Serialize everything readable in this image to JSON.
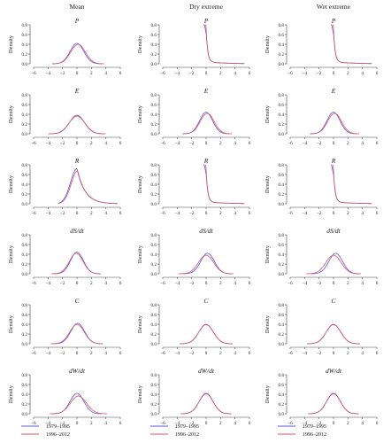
{
  "figure": {
    "column_titles": [
      "Mean",
      "Dry extreme",
      "Wet extreme"
    ],
    "row_labels": [
      [
        "P",
        "P",
        "P"
      ],
      [
        "E",
        "E",
        "E"
      ],
      [
        "R",
        "R",
        "R"
      ],
      [
        "dS/dt",
        "dS/dt",
        "dS/dt"
      ],
      [
        "C",
        "C",
        "C"
      ],
      [
        "dW/dt",
        "dW/dt",
        "dW/dt"
      ]
    ],
    "ylabel": "Density",
    "x_ticks": [
      "−6",
      "−4",
      "−2",
      "0",
      "2",
      "4",
      "6"
    ],
    "y_ticks": [
      "0.0",
      "0.2",
      "0.4",
      "0.6",
      "0.8"
    ],
    "legend": [
      "1979–1995",
      "1996–2012"
    ]
  },
  "colors": {
    "series_1": "#5b5bd6",
    "series_2": "#d9536b",
    "axis": "#444444"
  },
  "chart_data": {
    "type": "line",
    "xlim": [
      -6,
      6
    ],
    "ylim": [
      0,
      0.8
    ],
    "series_names": [
      "1979–1995",
      "1996–2012"
    ],
    "panels": [
      {
        "row": 0,
        "col": 0,
        "label": "P",
        "kind": "normal",
        "s1": {
          "mu": 0.0,
          "sd": 0.95
        },
        "s2": {
          "mu": 0.15,
          "sd": 1.0
        }
      },
      {
        "row": 0,
        "col": 1,
        "label": "P",
        "kind": "spike",
        "s1": {
          "peak": 0.9,
          "x0": -0.35
        },
        "s2": {
          "peak": 0.95,
          "x0": -0.1
        }
      },
      {
        "row": 0,
        "col": 2,
        "label": "P",
        "kind": "spike",
        "s1": {
          "peak": 0.88,
          "x0": -0.35
        },
        "s2": {
          "peak": 0.93,
          "x0": -0.1
        }
      },
      {
        "row": 1,
        "col": 0,
        "label": "E",
        "kind": "normal",
        "s1": {
          "mu": 0.0,
          "sd": 1.05
        },
        "s2": {
          "mu": 0.0,
          "sd": 1.1
        }
      },
      {
        "row": 1,
        "col": 1,
        "label": "E",
        "kind": "normal",
        "s1": {
          "mu": 0.0,
          "sd": 0.9
        },
        "s2": {
          "mu": 0.15,
          "sd": 0.95
        }
      },
      {
        "row": 1,
        "col": 2,
        "label": "E",
        "kind": "normal",
        "s1": {
          "mu": 0.0,
          "sd": 0.9
        },
        "s2": {
          "mu": 0.15,
          "sd": 0.95
        }
      },
      {
        "row": 2,
        "col": 0,
        "label": "R",
        "kind": "skew",
        "s1": {
          "peak": 0.72,
          "mode": 0.0
        },
        "s2": {
          "peak": 0.68,
          "mode": 0.1
        }
      },
      {
        "row": 2,
        "col": 1,
        "label": "R",
        "kind": "spike",
        "s1": {
          "peak": 0.88,
          "x0": -0.35
        },
        "s2": {
          "peak": 0.92,
          "x0": -0.1
        }
      },
      {
        "row": 2,
        "col": 2,
        "label": "R",
        "kind": "spike",
        "s1": {
          "peak": 0.86,
          "x0": -0.35
        },
        "s2": {
          "peak": 0.9,
          "x0": -0.1
        }
      },
      {
        "row": 3,
        "col": 0,
        "label": "dS/dt",
        "kind": "normal",
        "s1": {
          "mu": 0.0,
          "sd": 0.9
        },
        "s2": {
          "mu": -0.1,
          "sd": 0.95
        }
      },
      {
        "row": 3,
        "col": 1,
        "label": "dS/dt",
        "kind": "normal",
        "s1": {
          "mu": 0.2,
          "sd": 0.95
        },
        "s2": {
          "mu": 0.0,
          "sd": 1.05
        }
      },
      {
        "row": 3,
        "col": 2,
        "label": "dS/dt",
        "kind": "normal",
        "s1": {
          "mu": 0.3,
          "sd": 0.95
        },
        "s2": {
          "mu": 0.0,
          "sd": 1.05
        }
      },
      {
        "row": 4,
        "col": 0,
        "label": "C",
        "kind": "normal",
        "s1": {
          "mu": 0.1,
          "sd": 0.95
        },
        "s2": {
          "mu": 0.0,
          "sd": 1.0
        }
      },
      {
        "row": 4,
        "col": 1,
        "label": "C",
        "kind": "normal",
        "s1": {
          "mu": 0.0,
          "sd": 1.0
        },
        "s2": {
          "mu": 0.0,
          "sd": 1.02
        }
      },
      {
        "row": 4,
        "col": 2,
        "label": "C",
        "kind": "normal",
        "s1": {
          "mu": 0.0,
          "sd": 1.0
        },
        "s2": {
          "mu": 0.0,
          "sd": 1.02
        }
      },
      {
        "row": 5,
        "col": 0,
        "label": "dW/dt",
        "kind": "normal",
        "s1": {
          "mu": 0.0,
          "sd": 0.95
        },
        "s2": {
          "mu": 0.2,
          "sd": 1.1
        }
      },
      {
        "row": 5,
        "col": 1,
        "label": "dW/dt",
        "kind": "normal",
        "s1": {
          "mu": 0.0,
          "sd": 0.95
        },
        "s2": {
          "mu": 0.0,
          "sd": 0.98
        }
      },
      {
        "row": 5,
        "col": 2,
        "label": "dW/dt",
        "kind": "normal",
        "s1": {
          "mu": 0.0,
          "sd": 0.95
        },
        "s2": {
          "mu": 0.0,
          "sd": 0.98
        }
      }
    ]
  }
}
